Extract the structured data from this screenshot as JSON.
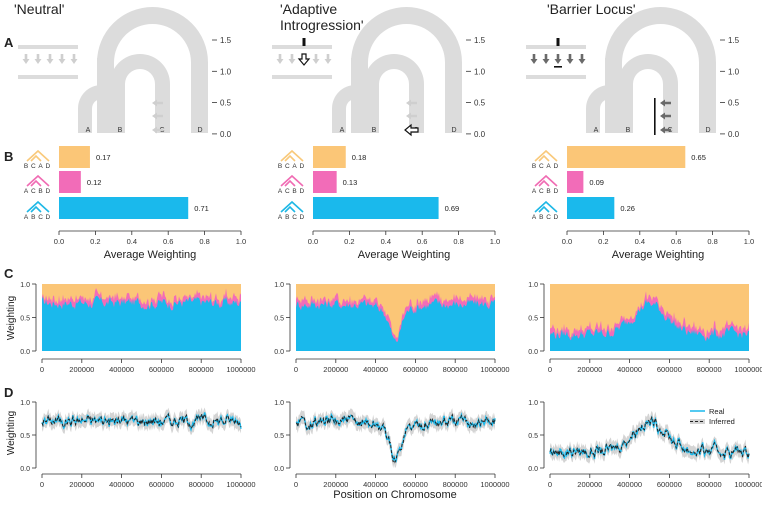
{
  "panel_letters": [
    "A",
    "B",
    "C",
    "D"
  ],
  "scenarios": [
    {
      "title_lines": [
        "'Neutral'"
      ],
      "type": "neutral",
      "chart_index": 0
    },
    {
      "title_lines": [
        "'Adaptive",
        "Introgression'"
      ],
      "type": "adaptive",
      "chart_index": 1
    },
    {
      "title_lines": [
        "'Barrier Locus'"
      ],
      "type": "barrier",
      "chart_index": 2
    }
  ],
  "tree": {
    "taxa": [
      "A",
      "B",
      "C",
      "D"
    ],
    "time_ticks": [
      "1.5",
      "1.0",
      "0.5",
      "0.0"
    ],
    "time_values": [
      1.5,
      1.0,
      0.5,
      0.0
    ]
  },
  "topologies": [
    {
      "leaves": [
        "B",
        "C",
        "A",
        "D"
      ],
      "color": "#f9c97a"
    },
    {
      "leaves": [
        "A",
        "C",
        "B",
        "D"
      ],
      "color": "#f06bb3"
    },
    {
      "leaves": [
        "A",
        "B",
        "C",
        "D"
      ],
      "color": "#1eb8e6"
    }
  ],
  "bar_axis": {
    "label": "Average Weighting",
    "ticks": [
      "0.0",
      "0.2",
      "0.4",
      "0.6",
      "0.8",
      "1.0"
    ],
    "xlim": [
      0,
      1
    ]
  },
  "weight_axis": {
    "label": "Weighting",
    "ticks": [
      "0.0",
      "0.5",
      "1.0"
    ]
  },
  "pos_axis": {
    "label": "Position on Chromosome",
    "ticks": [
      "0",
      "200000",
      "400000",
      "600000",
      "800000",
      "1000000"
    ],
    "xlim": [
      0,
      1000000
    ]
  },
  "legend": {
    "real": "Real",
    "inferred": "Inferred",
    "real_color": "#1eb8e6",
    "inferred_color": "#222222"
  },
  "colors": {
    "orange": "#fbc677",
    "pink": "#f26cb8",
    "blue": "#1ab9ec",
    "tree": "#dcdcdc",
    "arrow_light": "#cfcfcf",
    "arrow_dark": "#6a6a6a"
  },
  "chart_data": [
    {
      "type": "bar",
      "title": "",
      "xlabel": "Average Weighting",
      "ylabel": "",
      "xlim": [
        0,
        1
      ],
      "categories": [
        "BCAD",
        "ACBD",
        "ABCD"
      ],
      "values": [
        0.17,
        0.12,
        0.71
      ],
      "value_labels": [
        "0.17",
        "0.12",
        "0.71"
      ]
    },
    {
      "type": "bar",
      "title": "",
      "xlabel": "Average Weighting",
      "ylabel": "",
      "xlim": [
        0,
        1
      ],
      "categories": [
        "BCAD",
        "ACBD",
        "ABCD"
      ],
      "values": [
        0.18,
        0.13,
        0.69
      ],
      "value_labels": [
        "0.18",
        "0.13",
        "0.69"
      ]
    },
    {
      "type": "bar",
      "title": "",
      "xlabel": "Average Weighting",
      "ylabel": "",
      "xlim": [
        0,
        1
      ],
      "categories": [
        "BCAD",
        "ACBD",
        "ABCD"
      ],
      "values": [
        0.65,
        0.09,
        0.26
      ],
      "value_labels": [
        "0.65",
        "0.09",
        "0.26"
      ]
    }
  ]
}
